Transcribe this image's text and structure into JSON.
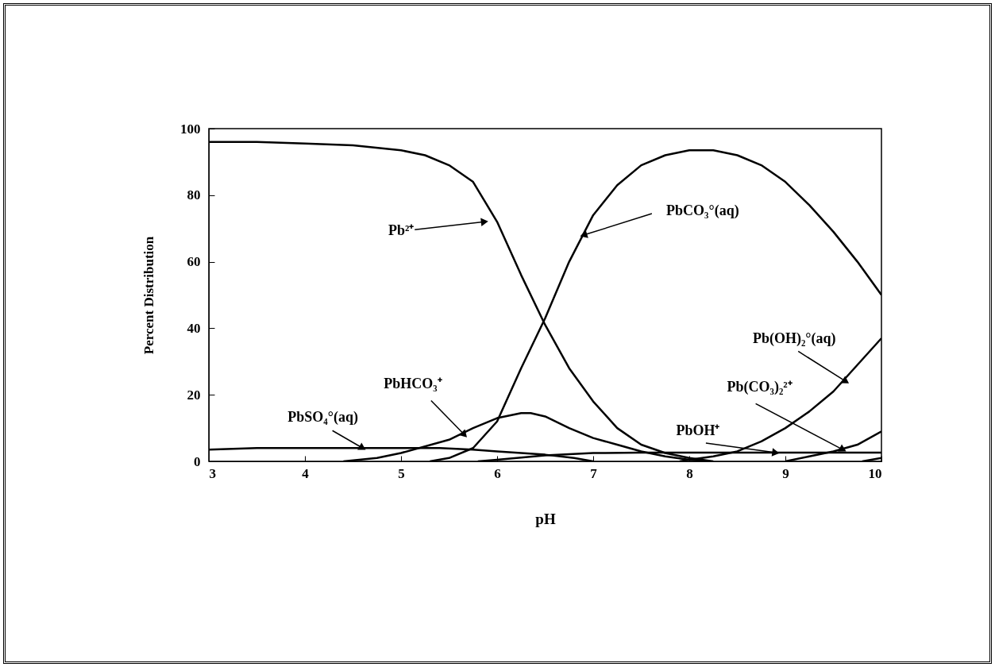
{
  "chart_data": {
    "type": "line",
    "xlabel": "pH",
    "ylabel": "Percent Distribution",
    "xlim": [
      3,
      10
    ],
    "ylim": [
      0,
      100
    ],
    "xticks": [
      3,
      4,
      5,
      6,
      7,
      8,
      9,
      10
    ],
    "yticks": [
      0,
      20,
      40,
      60,
      80,
      100
    ],
    "grid": false,
    "marker": "none",
    "line_style": "solid",
    "series": [
      {
        "color": "#000000",
        "x": [
          3,
          3.5,
          4,
          4.5,
          5,
          5.25,
          5.5,
          5.75,
          6,
          6.25,
          6.5,
          6.75,
          7,
          7.25,
          7.5,
          7.75,
          8,
          8.25
        ],
        "values": [
          96,
          96,
          95.5,
          95,
          93.5,
          92,
          89,
          84,
          72,
          56,
          41,
          28,
          18,
          10,
          5,
          2.5,
          1,
          0
        ]
      },
      {
        "color": "#000000",
        "x": [
          5.3,
          5.5,
          5.75,
          6,
          6.25,
          6.5,
          6.75,
          7,
          7.25,
          7.5,
          7.75,
          8,
          8.25,
          8.5,
          8.75,
          9,
          9.25,
          9.5,
          9.75,
          10
        ],
        "values": [
          0,
          1,
          4,
          12,
          28,
          43,
          60,
          74,
          83,
          89,
          92,
          93.5,
          93.5,
          92,
          89,
          84,
          77,
          69,
          60,
          50
        ]
      },
      {
        "color": "#000000",
        "x": [
          4.4,
          4.75,
          5,
          5.5,
          5.75,
          6,
          6.25,
          6.35,
          6.5,
          6.75,
          7,
          7.25,
          7.5,
          7.75,
          8,
          8.2
        ],
        "values": [
          0,
          1,
          2.5,
          6.5,
          10,
          13,
          14.5,
          14.5,
          13.5,
          10,
          7,
          5,
          3,
          1.5,
          0.5,
          0
        ]
      },
      {
        "color": "#000000",
        "x": [
          3,
          3.5,
          4,
          4.5,
          5,
          5.4,
          5.75,
          6,
          6.25,
          6.5,
          6.8,
          7
        ],
        "values": [
          3.5,
          4,
          4,
          4,
          4,
          4,
          3.5,
          3,
          2.5,
          2,
          1,
          0
        ]
      },
      {
        "color": "#000000",
        "x": [
          7.9,
          8,
          8.25,
          8.5,
          8.75,
          9,
          9.25,
          9.5,
          9.75,
          10
        ],
        "values": [
          0,
          0.5,
          1.5,
          3,
          6,
          10,
          15,
          21,
          29,
          37
        ]
      },
      {
        "color": "#000000",
        "x": [
          5.8,
          6,
          6.5,
          7,
          7.5,
          8,
          9,
          10
        ],
        "values": [
          0,
          0.5,
          1.8,
          2.5,
          2.6,
          2.6,
          2.6,
          2.6
        ]
      },
      {
        "color": "#000000",
        "x": [
          9,
          9.25,
          9.5,
          9.75,
          10
        ],
        "values": [
          0,
          1.5,
          3,
          5,
          9
        ]
      },
      {
        "color": "#000000",
        "x": [
          9.8,
          10
        ],
        "values": [
          0,
          1
        ]
      }
    ],
    "annotations": [
      {
        "text": "Pb²⁺",
        "x": 5.87,
        "y": 72
      },
      {
        "text": "PbCO₃°(aq)",
        "x": 6.9,
        "y": 68
      },
      {
        "text": "PbHCO₃⁺",
        "x": 5.66,
        "y": 8
      },
      {
        "text": "PbSO₄°(aq)",
        "x": 4.6,
        "y": 4
      },
      {
        "text": "Pb(OH)₂°(aq)",
        "x": 9.63,
        "y": 24
      },
      {
        "text": "Pb(CO₃)₂²⁺",
        "x": 9.6,
        "y": 3.5
      },
      {
        "text": "PbOH⁺",
        "x": 8.9,
        "y": 2.6
      }
    ]
  }
}
